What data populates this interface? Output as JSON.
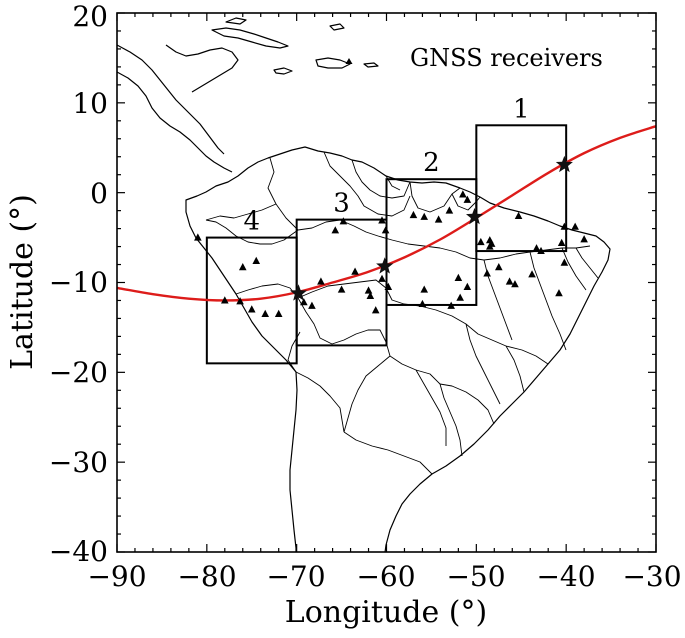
{
  "map": {
    "xlabel": "Longitude (°)",
    "ylabel": "Latitude (°)",
    "xlim": [
      -90,
      -30
    ],
    "ylim": [
      -40,
      20
    ],
    "xticks": [
      -90,
      -80,
      -70,
      -60,
      -50,
      -40,
      -30
    ],
    "yticks": [
      -40,
      -30,
      -20,
      -10,
      0,
      10,
      20
    ],
    "xtick_labels": [
      "−90",
      "−80",
      "−70",
      "−60",
      "−50",
      "−40",
      "−30"
    ],
    "ytick_labels": [
      "−40",
      "−30",
      "−20",
      "−10",
      "0",
      "10",
      "20"
    ],
    "legend_label": "GNSS receivers",
    "path_color": "#dd1c1a",
    "boxes": [
      {
        "label": "1",
        "lon": [
          -50,
          -40
        ],
        "lat": [
          -6.5,
          7.5
        ]
      },
      {
        "label": "2",
        "lon": [
          -60,
          -50
        ],
        "lat": [
          -12.5,
          1.5
        ]
      },
      {
        "label": "3",
        "lon": [
          -70,
          -60
        ],
        "lat": [
          -17,
          -3
        ]
      },
      {
        "label": "4",
        "lon": [
          -80,
          -70
        ],
        "lat": [
          -19,
          -5
        ]
      }
    ],
    "path_stars": [
      {
        "lon": -40.2,
        "lat": 3.1
      },
      {
        "lon": -50.2,
        "lat": -2.7
      },
      {
        "lon": -60.2,
        "lat": -8.2
      },
      {
        "lon": -69.8,
        "lat": -11.2
      }
    ],
    "path_points": [
      [
        -90,
        -10.6
      ],
      [
        -86,
        -11.3
      ],
      [
        -82,
        -11.8
      ],
      [
        -78,
        -12.0
      ],
      [
        -74,
        -11.8
      ],
      [
        -70,
        -11.1
      ],
      [
        -66,
        -10.0
      ],
      [
        -62,
        -8.8
      ],
      [
        -58,
        -7.2
      ],
      [
        -54,
        -5.2
      ],
      [
        -50,
        -2.8
      ],
      [
        -46,
        -0.3
      ],
      [
        -42,
        2.2
      ],
      [
        -38,
        4.4
      ],
      [
        -34,
        6.1
      ],
      [
        -30,
        7.4
      ]
    ],
    "receivers": [
      [
        -81,
        -5
      ],
      [
        -76,
        -8.3
      ],
      [
        -74.5,
        -7.6
      ],
      [
        -78,
        -12
      ],
      [
        -76.3,
        -12.1
      ],
      [
        -75,
        -13
      ],
      [
        -73.5,
        -13.5
      ],
      [
        -72,
        -13.5
      ],
      [
        -69.2,
        -12.2
      ],
      [
        -68.3,
        -12.6
      ],
      [
        -67.3,
        -9.9
      ],
      [
        -65,
        -10.8
      ],
      [
        -64.8,
        -3.2
      ],
      [
        -65.7,
        -4.2
      ],
      [
        -63.5,
        -8.8
      ],
      [
        -62,
        -10.9
      ],
      [
        -61.8,
        -11.5
      ],
      [
        -60.5,
        -3.1
      ],
      [
        -60.1,
        -4.2
      ],
      [
        -61.2,
        -13.1
      ],
      [
        -60.5,
        -9.6
      ],
      [
        -59.8,
        -10.5
      ],
      [
        -57,
        -2.5
      ],
      [
        -55.8,
        -2.7
      ],
      [
        -54.2,
        -3.0
      ],
      [
        -53,
        -2
      ],
      [
        -51.5,
        -0.2
      ],
      [
        -51,
        -0.8
      ],
      [
        -55.8,
        -10.8
      ],
      [
        -56,
        -12.4
      ],
      [
        -52,
        -9.5
      ],
      [
        -51,
        -10.5
      ],
      [
        -52.8,
        -12.6
      ],
      [
        -51.8,
        -11.7
      ],
      [
        -49.5,
        -5.5
      ],
      [
        -48.5,
        -5.3
      ],
      [
        -48.3,
        -5.7
      ],
      [
        -47.5,
        -8.3
      ],
      [
        -48.8,
        -9.0
      ],
      [
        -46.3,
        -9.9
      ],
      [
        -45.7,
        -10.2
      ],
      [
        -45.3,
        -2.6
      ],
      [
        -43.3,
        -6.2
      ],
      [
        -43.8,
        -9.1
      ],
      [
        -42.8,
        -6.5
      ],
      [
        -40.2,
        -3.8
      ],
      [
        -40.5,
        -5.6
      ],
      [
        -40.2,
        -7.8
      ],
      [
        -39,
        -3.8
      ],
      [
        -38,
        -5.2
      ],
      [
        -40.8,
        -11.2
      ],
      [
        -48.5,
        -6.0
      ]
    ]
  }
}
